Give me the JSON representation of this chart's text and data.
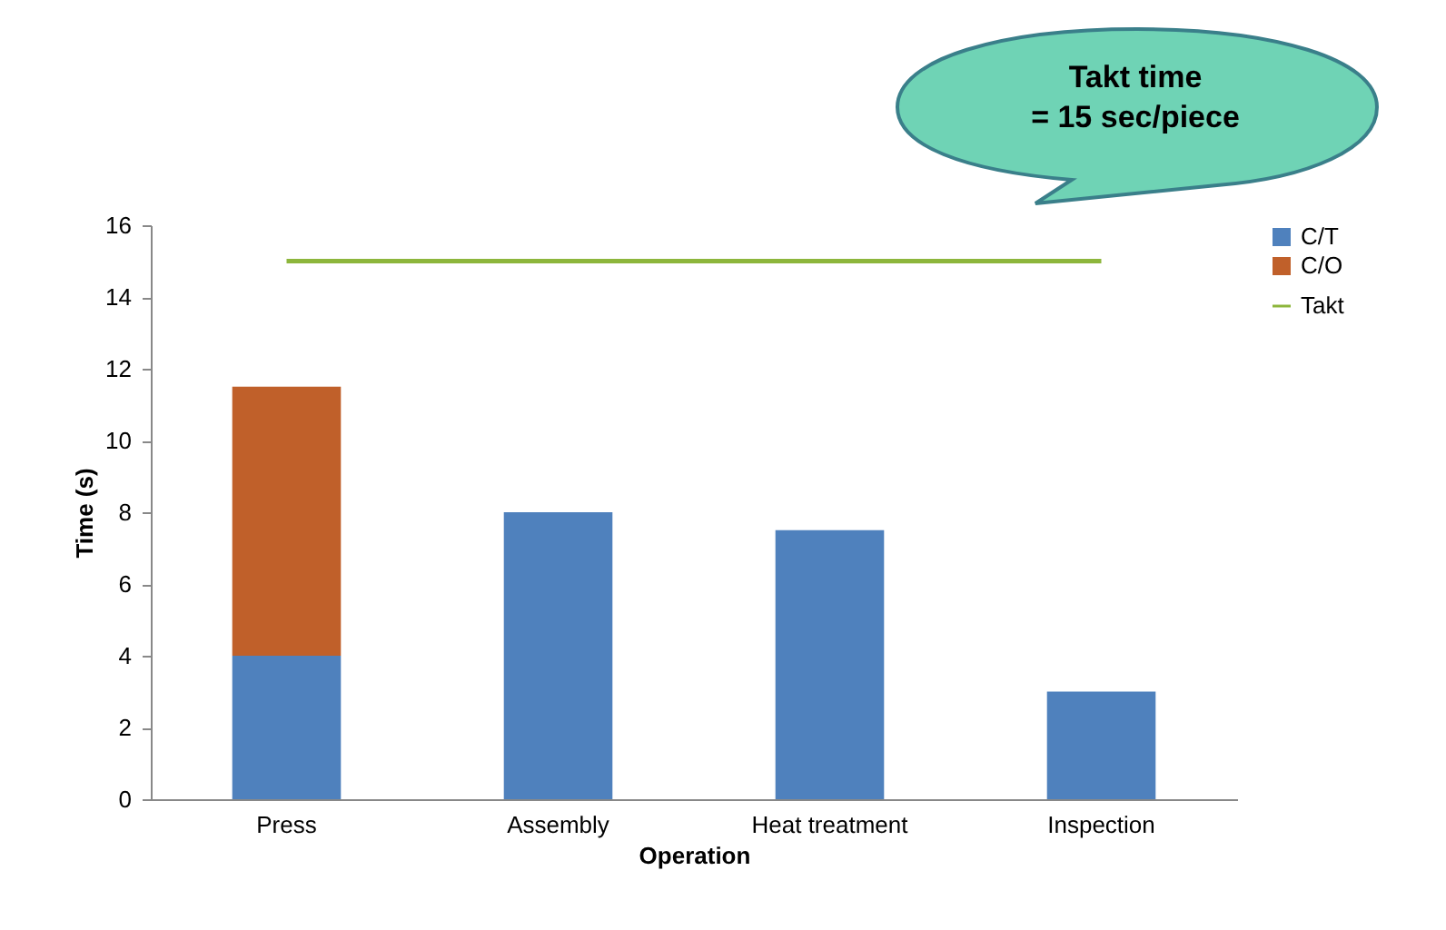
{
  "chart_data": {
    "type": "bar",
    "stacked": true,
    "xlabel": "Operation",
    "ylabel": "Time (s)",
    "categories": [
      "Press",
      "Assembly",
      "Heat treatment",
      "Inspection"
    ],
    "series": [
      {
        "name": "C/T",
        "color": "#4f81bd",
        "values": [
          4,
          8,
          7.5,
          3
        ]
      },
      {
        "name": "C/O",
        "color": "#c0602a",
        "values": [
          7.5,
          null,
          null,
          null
        ]
      },
      {
        "name": "Takt",
        "type": "line",
        "color": "#8db63c",
        "values": [
          15,
          15,
          15,
          15
        ]
      }
    ],
    "ylim": [
      0,
      16
    ],
    "yticks": [
      0,
      2,
      4,
      6,
      8,
      10,
      12,
      14,
      16
    ],
    "grid": false,
    "legend": "right",
    "annotations": [
      "Takt time\n= 15 sec/piece"
    ]
  }
}
